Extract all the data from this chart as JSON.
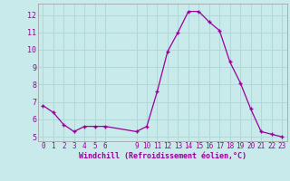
{
  "x": [
    0,
    1,
    2,
    3,
    4,
    5,
    6,
    9,
    10,
    11,
    12,
    13,
    14,
    15,
    16,
    17,
    18,
    19,
    20,
    21,
    22,
    23
  ],
  "y": [
    6.8,
    6.4,
    5.7,
    5.3,
    5.6,
    5.6,
    5.6,
    5.3,
    5.6,
    7.6,
    9.9,
    11.0,
    12.2,
    12.2,
    11.6,
    11.1,
    9.3,
    8.1,
    6.6,
    5.3,
    5.15,
    5.0
  ],
  "line_color": "#990099",
  "marker_color": "#990099",
  "bg_color": "#c8eaea",
  "grid_color": "#b0d8d8",
  "xlabel": "Windchill (Refroidissement éolien,°C)",
  "xlabel_color": "#990099",
  "tick_color": "#990099",
  "xlim": [
    -0.5,
    23.5
  ],
  "ylim": [
    4.75,
    12.65
  ],
  "yticks": [
    5,
    6,
    7,
    8,
    9,
    10,
    11,
    12
  ],
  "xticks": [
    0,
    1,
    2,
    3,
    4,
    5,
    6,
    9,
    10,
    11,
    12,
    13,
    14,
    15,
    16,
    17,
    18,
    19,
    20,
    21,
    22,
    23
  ],
  "tick_fontsize": 5.5,
  "xlabel_fontsize": 6.0
}
